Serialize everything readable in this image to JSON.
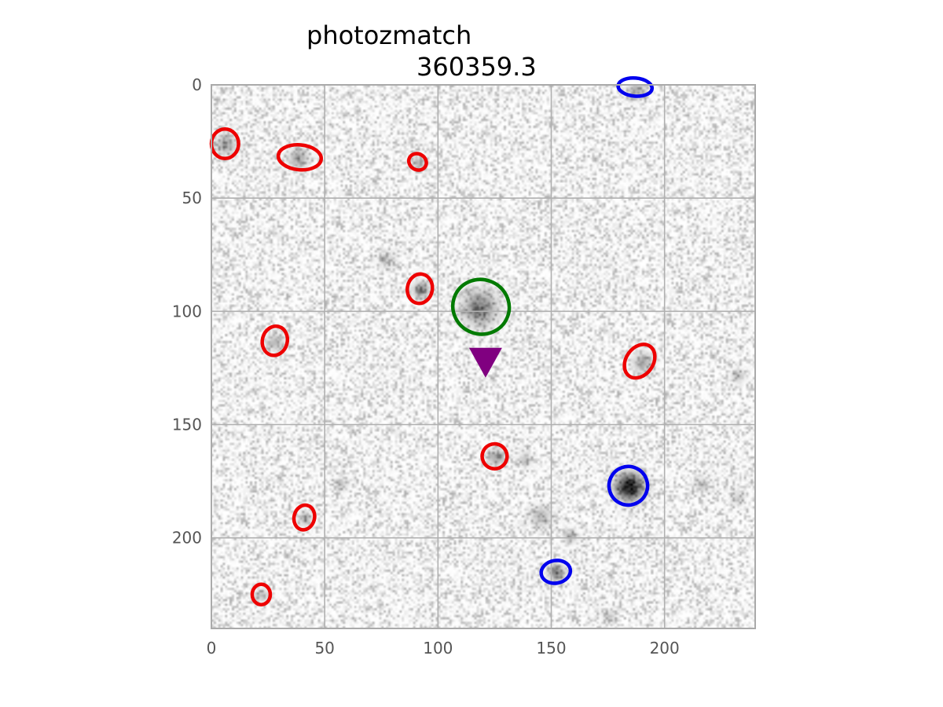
{
  "chart_data": {
    "type": "scatter",
    "title": "photozmatch",
    "subtitle": "360359.3",
    "xlabel": "",
    "ylabel": "",
    "xlim": [
      0,
      240
    ],
    "ylim": [
      240,
      0
    ],
    "y_inverted": true,
    "grid": true,
    "background": "grayscale noise image",
    "x_ticks": [
      0,
      50,
      100,
      150,
      200
    ],
    "y_ticks": [
      0,
      50,
      100,
      150,
      200
    ],
    "x_tick_labels": [
      "0",
      "50",
      "100",
      "150",
      "200"
    ],
    "y_tick_labels": [
      "0",
      "50",
      "100",
      "150",
      "200"
    ],
    "colors": {
      "red": "#ee0000",
      "blue": "#0000ee",
      "green": "#007a00",
      "purple": "#800080",
      "grid": "#b0b0b0",
      "frame": "#aaaaaa"
    },
    "ellipses": [
      {
        "color": "red",
        "x": 6,
        "y": 26,
        "w": 12,
        "h": 13,
        "angle": 0
      },
      {
        "color": "red",
        "x": 39,
        "y": 32,
        "w": 19,
        "h": 11,
        "angle": 5
      },
      {
        "color": "red",
        "x": 91,
        "y": 34,
        "w": 8,
        "h": 7,
        "angle": 30
      },
      {
        "color": "red",
        "x": 92,
        "y": 90,
        "w": 11,
        "h": 13,
        "angle": 10
      },
      {
        "color": "red",
        "x": 28,
        "y": 113,
        "w": 11,
        "h": 13,
        "angle": 15
      },
      {
        "color": "red",
        "x": 189,
        "y": 122,
        "w": 12,
        "h": 16,
        "angle": 35
      },
      {
        "color": "red",
        "x": 125,
        "y": 164,
        "w": 11,
        "h": 11,
        "angle": 20
      },
      {
        "color": "red",
        "x": 41,
        "y": 191,
        "w": 9,
        "h": 11,
        "angle": 15
      },
      {
        "color": "red",
        "x": 22,
        "y": 225,
        "w": 8,
        "h": 9,
        "angle": 0
      },
      {
        "color": "blue",
        "x": 187,
        "y": 1,
        "w": 15,
        "h": 8,
        "angle": 5
      },
      {
        "color": "blue",
        "x": 184,
        "y": 177,
        "w": 17,
        "h": 17,
        "angle": -20
      },
      {
        "color": "blue",
        "x": 152,
        "y": 215,
        "w": 13,
        "h": 10,
        "angle": -10
      },
      {
        "color": "green",
        "x": 119,
        "y": 98,
        "w": 25,
        "h": 24,
        "angle": 20
      }
    ],
    "sources": [
      {
        "x": 6,
        "y": 26,
        "r": 3,
        "i": 0.35
      },
      {
        "x": 38,
        "y": 32,
        "r": 3,
        "i": 0.35
      },
      {
        "x": 91,
        "y": 34,
        "r": 2,
        "i": 0.3
      },
      {
        "x": 92,
        "y": 90,
        "r": 2.5,
        "i": 0.45
      },
      {
        "x": 28,
        "y": 113,
        "r": 2.5,
        "i": 0.3
      },
      {
        "x": 190,
        "y": 122,
        "r": 3,
        "i": 0.35
      },
      {
        "x": 125,
        "y": 164,
        "r": 2.5,
        "i": 0.35
      },
      {
        "x": 41,
        "y": 191,
        "r": 2,
        "i": 0.3
      },
      {
        "x": 22,
        "y": 225,
        "r": 2,
        "i": 0.25
      },
      {
        "x": 187,
        "y": 2,
        "r": 2.5,
        "i": 0.35
      },
      {
        "x": 184,
        "y": 177,
        "r": 4,
        "i": 1.0
      },
      {
        "x": 152,
        "y": 215,
        "r": 2.5,
        "i": 0.5
      },
      {
        "x": 118,
        "y": 98,
        "r": 5,
        "i": 0.55
      },
      {
        "x": 145,
        "y": 190,
        "r": 3,
        "i": 0.3
      },
      {
        "x": 158,
        "y": 199,
        "r": 2,
        "i": 0.3
      },
      {
        "x": 77,
        "y": 77,
        "r": 2.5,
        "i": 0.2
      },
      {
        "x": 138,
        "y": 165,
        "r": 2,
        "i": 0.25
      },
      {
        "x": 216,
        "y": 176,
        "r": 2,
        "i": 0.25
      },
      {
        "x": 232,
        "y": 128,
        "r": 2,
        "i": 0.25
      },
      {
        "x": 57,
        "y": 176,
        "r": 2,
        "i": 0.2
      },
      {
        "x": 232,
        "y": 182,
        "r": 2,
        "i": 0.2
      },
      {
        "x": 175,
        "y": 234,
        "r": 2,
        "i": 0.2
      }
    ],
    "markers": [
      {
        "type": "triangle-down",
        "color": "purple",
        "x": 121,
        "y": 122
      }
    ]
  }
}
